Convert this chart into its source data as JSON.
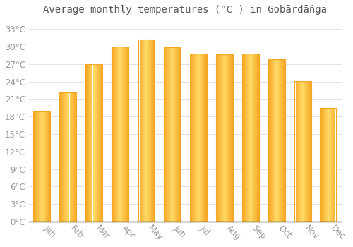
{
  "title": "Average monthly temperatures (°C ) in Gobārdāṅga",
  "months": [
    "Jan",
    "Feb",
    "Mar",
    "Apr",
    "May",
    "Jun",
    "Jul",
    "Aug",
    "Sep",
    "Oct",
    "Nov",
    "Dec"
  ],
  "values": [
    19.0,
    22.2,
    27.0,
    30.0,
    31.2,
    29.9,
    28.8,
    28.7,
    28.8,
    27.8,
    24.1,
    19.5
  ],
  "bar_color_center": "#FFD966",
  "bar_color_edge": "#F5A623",
  "background_color": "#FFFFFF",
  "plot_bg_color": "#FFFFFF",
  "grid_color": "#DDDDDD",
  "axis_color": "#999999",
  "title_color": "#555555",
  "yticks": [
    0,
    3,
    6,
    9,
    12,
    15,
    18,
    21,
    24,
    27,
    30,
    33
  ],
  "ylim": [
    0,
    34.5
  ],
  "title_fontsize": 10,
  "tick_fontsize": 8.5,
  "figsize": [
    5.0,
    3.5
  ],
  "dpi": 100,
  "bar_width": 0.65
}
